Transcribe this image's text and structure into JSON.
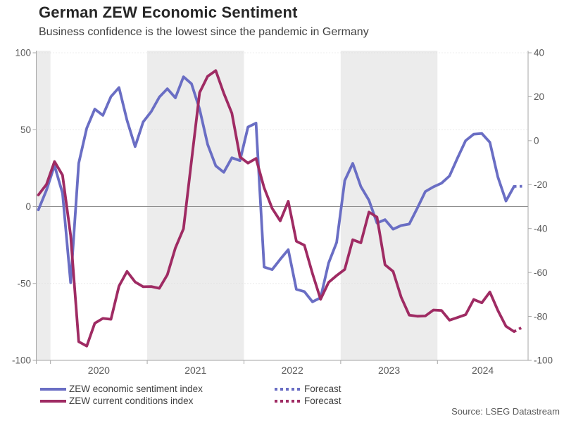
{
  "chart_data": {
    "type": "line",
    "title": "German ZEW Economic Sentiment",
    "subtitle": "Business confidence is the lowest since the pandemic in Germany",
    "source": "Source: LSEG Datastream",
    "frequency": "monthly",
    "x_start": "2019-11",
    "x_end": "2024-11",
    "x_year_labels": [
      "2020",
      "2021",
      "2022",
      "2023",
      "2024"
    ],
    "shaded_years": [
      2019,
      2021,
      2023
    ],
    "left_axis": {
      "range": [
        -100,
        100
      ],
      "ticks": [
        100,
        50,
        0,
        -50,
        -100
      ]
    },
    "right_axis": {
      "range": [
        -100,
        40
      ],
      "ticks": [
        40,
        20,
        0,
        -20,
        -40,
        -60,
        -80,
        -100
      ]
    },
    "zero_line": true,
    "grid": "dotted-horizontal",
    "legend": [
      {
        "label": "ZEW economic sentiment index",
        "style": "solid",
        "color": "#6A6EC4"
      },
      {
        "label": "ZEW current conditions index",
        "style": "solid",
        "color": "#9F2B63"
      },
      {
        "label": "Forecast",
        "style": "dotted",
        "color": "#6A6EC4"
      },
      {
        "label": "Forecast",
        "style": "dotted",
        "color": "#9F2B63"
      }
    ],
    "series": [
      {
        "name": "ZEW economic sentiment index",
        "axis": "left",
        "color": "#6A6EC4",
        "forecast_points": 1,
        "values": [
          -2.1,
          10.7,
          26.7,
          8.7,
          -49.5,
          28.2,
          51.0,
          63.4,
          59.3,
          71.5,
          77.4,
          56.1,
          39.0,
          55.0,
          61.8,
          71.2,
          76.6,
          70.7,
          84.4,
          79.8,
          63.3,
          40.4,
          26.5,
          22.3,
          31.7,
          29.9,
          51.7,
          54.3,
          -39.3,
          -41.0,
          -34.3,
          -28.0,
          -53.8,
          -55.3,
          -61.9,
          -59.2,
          -36.7,
          -23.3,
          16.9,
          28.1,
          13.0,
          4.1,
          -10.7,
          -8.5,
          -14.7,
          -12.3,
          -11.4,
          -1.1,
          9.8,
          12.8,
          15.2,
          19.9,
          31.7,
          42.9,
          47.1,
          47.5,
          41.8,
          19.2,
          3.6,
          13.1,
          13.2
        ]
      },
      {
        "name": "ZEW current conditions index",
        "axis": "right",
        "color": "#9F2B63",
        "forecast_points": 1,
        "values": [
          -24.7,
          -19.9,
          -9.5,
          -15.7,
          -43.1,
          -91.5,
          -93.5,
          -83.1,
          -80.9,
          -81.3,
          -66.2,
          -59.5,
          -64.3,
          -66.5,
          -66.4,
          -67.2,
          -61.0,
          -48.8,
          -40.1,
          -9.1,
          21.9,
          29.3,
          31.9,
          21.6,
          12.5,
          -7.4,
          -10.2,
          -8.1,
          -21.4,
          -30.8,
          -36.5,
          -27.6,
          -45.8,
          -47.6,
          -60.5,
          -72.2,
          -64.5,
          -61.4,
          -58.6,
          -45.1,
          -46.5,
          -32.5,
          -34.8,
          -56.5,
          -59.5,
          -71.3,
          -79.4,
          -79.9,
          -79.8,
          -77.1,
          -77.3,
          -81.7,
          -80.5,
          -79.2,
          -72.3,
          -73.8,
          -68.9,
          -77.3,
          -84.5,
          -86.9,
          -85.0
        ]
      }
    ]
  },
  "colors": {
    "year_band": "#ECECEC",
    "gridline": "#D9D9D9",
    "zero_line": "#8C8C8C",
    "axis": "#A6A6A6",
    "tick_label": "#595959",
    "title": "#262626",
    "subtitle": "#404040",
    "legend_text": "#404040",
    "source_text": "#595959"
  }
}
